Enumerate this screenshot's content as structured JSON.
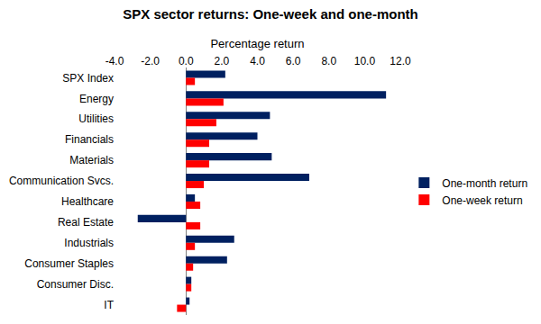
{
  "chart_data": {
    "type": "bar",
    "orientation": "horizontal",
    "title": "SPX sector returns: One-week and one-month",
    "x_label": "Percentage return",
    "categories": [
      "SPX Index",
      "Energy",
      "Utilities",
      "Financials",
      "Materials",
      "Communication Svcs.",
      "Healthcare",
      "Real Estate",
      "Industrials",
      "Consumer Staples",
      "Consumer Disc.",
      "IT"
    ],
    "series": [
      {
        "name": "One-month return",
        "color": "#002060",
        "values": [
          2.2,
          11.2,
          4.7,
          4.0,
          4.8,
          6.9,
          0.5,
          -2.7,
          2.7,
          2.3,
          0.3,
          0.2
        ]
      },
      {
        "name": "One-week return",
        "color": "#ff0000",
        "values": [
          0.5,
          2.1,
          1.7,
          1.3,
          1.3,
          1.0,
          0.8,
          0.8,
          0.5,
          0.4,
          0.3,
          -0.5
        ]
      }
    ],
    "xlim": [
      -4,
      12
    ],
    "xticks": [
      {
        "value": -4,
        "label": "-4.0"
      },
      {
        "value": -2,
        "label": "-2.0"
      },
      {
        "value": 0,
        "label": "0.0"
      },
      {
        "value": 2,
        "label": "2.0"
      },
      {
        "value": 4,
        "label": "4.0"
      },
      {
        "value": 6,
        "label": "6.0"
      },
      {
        "value": 8,
        "label": "8.0"
      },
      {
        "value": 10,
        "label": "10.0"
      },
      {
        "value": 12,
        "label": "12.0"
      }
    ],
    "grid": false,
    "legend": "right"
  }
}
